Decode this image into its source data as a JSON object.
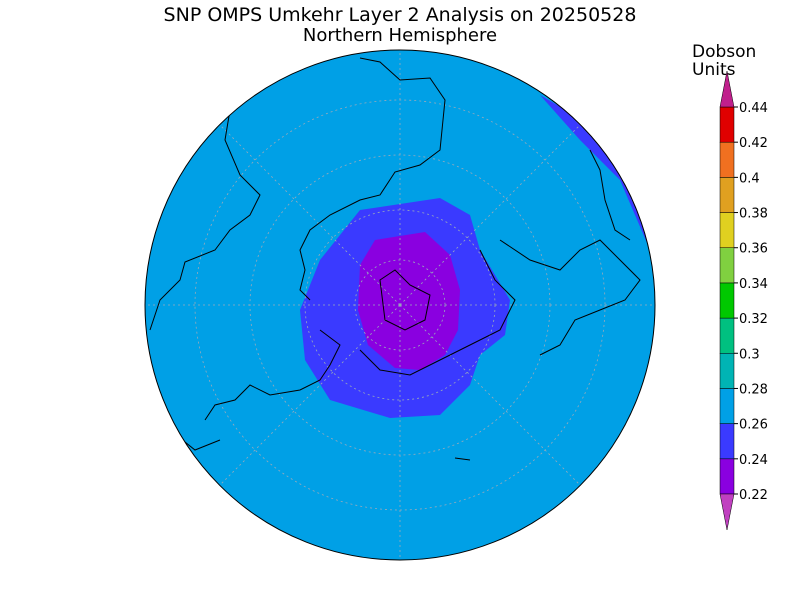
{
  "title": "SNP OMPS Umkehr Layer 2 Analysis on 20250528",
  "subtitle": "Northern Hemisphere",
  "colorbar": {
    "label": [
      "Dobson",
      "Units"
    ],
    "ticks": [
      0.22,
      0.24,
      0.26,
      0.28,
      0.3,
      0.32,
      0.34,
      0.36,
      0.38,
      0.4,
      0.42,
      0.44
    ],
    "under_color": "#c040c0",
    "band_colors": [
      "#8a00e0",
      "#3a3aff",
      "#00a0e6",
      "#00b4b4",
      "#00c080",
      "#00c800",
      "#80d040",
      "#e0d020",
      "#e0a020",
      "#f07020",
      "#e00000"
    ],
    "over_color": "#c0208c"
  }
}
